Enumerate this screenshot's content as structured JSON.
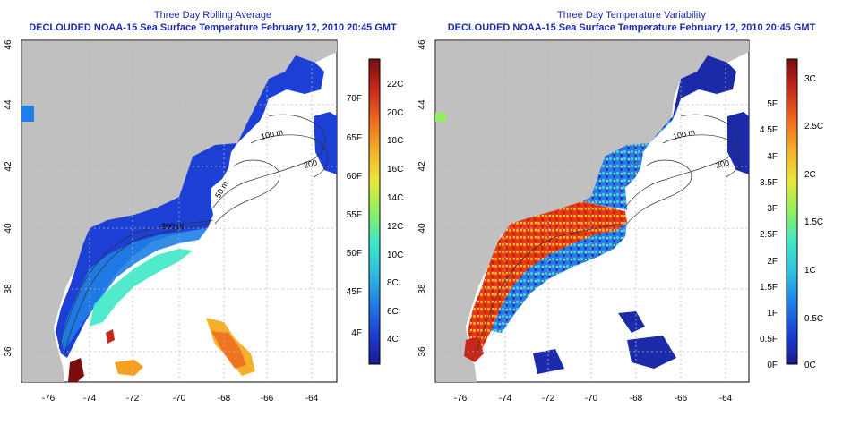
{
  "panels": [
    {
      "title": "Three Day Rolling Average",
      "subtitle": "DECLOUDED NOAA-15 Sea Surface Temperature February 12, 2010 20:45 GMT",
      "colorbar_left": [
        "4F",
        "45F",
        "50F",
        "55F",
        "60F",
        "65F",
        "70F"
      ],
      "colorbar_right": [
        "4C",
        "6C",
        "8C",
        "10C",
        "12C",
        "14C",
        "16C",
        "18C",
        "20C",
        "22C"
      ],
      "colormap": [
        "#1a1a8c",
        "#1c3fd6",
        "#1f7fe6",
        "#2fc0e0",
        "#3de8c8",
        "#8ef060",
        "#e8e838",
        "#f5b02a",
        "#ef6a1e",
        "#c8281a",
        "#7a0e0e"
      ]
    },
    {
      "title": "Three Day Temperature Variability",
      "subtitle": "DECLOUDED NOAA-15 Sea Surface Temperature February 12, 2010 20:45 GMT",
      "colorbar_left": [
        "0F",
        "0.5F",
        "1F",
        "1.5F",
        "2F",
        "2.5F",
        "3F",
        "3.5F",
        "4F",
        "4.5F",
        "5F"
      ],
      "colorbar_right": [
        "0C",
        "0.5C",
        "1C",
        "1.5C",
        "2C",
        "2.5C",
        "3C"
      ],
      "colormap": [
        "#1a1a8c",
        "#1c3fd6",
        "#1f7fe6",
        "#2fc0e0",
        "#3de8c8",
        "#8ef060",
        "#e8e838",
        "#f5b02a",
        "#ef6a1e",
        "#c8281a",
        "#7a0e0e"
      ]
    }
  ],
  "map_axes": {
    "x_ticks": [
      "-76",
      "-74",
      "-72",
      "-70",
      "-68",
      "-66",
      "-64"
    ],
    "y_ticks": [
      "36",
      "38",
      "40",
      "42",
      "44",
      "46"
    ]
  },
  "contour_labels": [
    "100 m",
    "200",
    "200 m",
    "50 m",
    "100 m",
    "200"
  ],
  "colors": {
    "land": "#c0c0c0",
    "title_blue": "#1c2ca8",
    "grid": "#b8b8b8"
  }
}
